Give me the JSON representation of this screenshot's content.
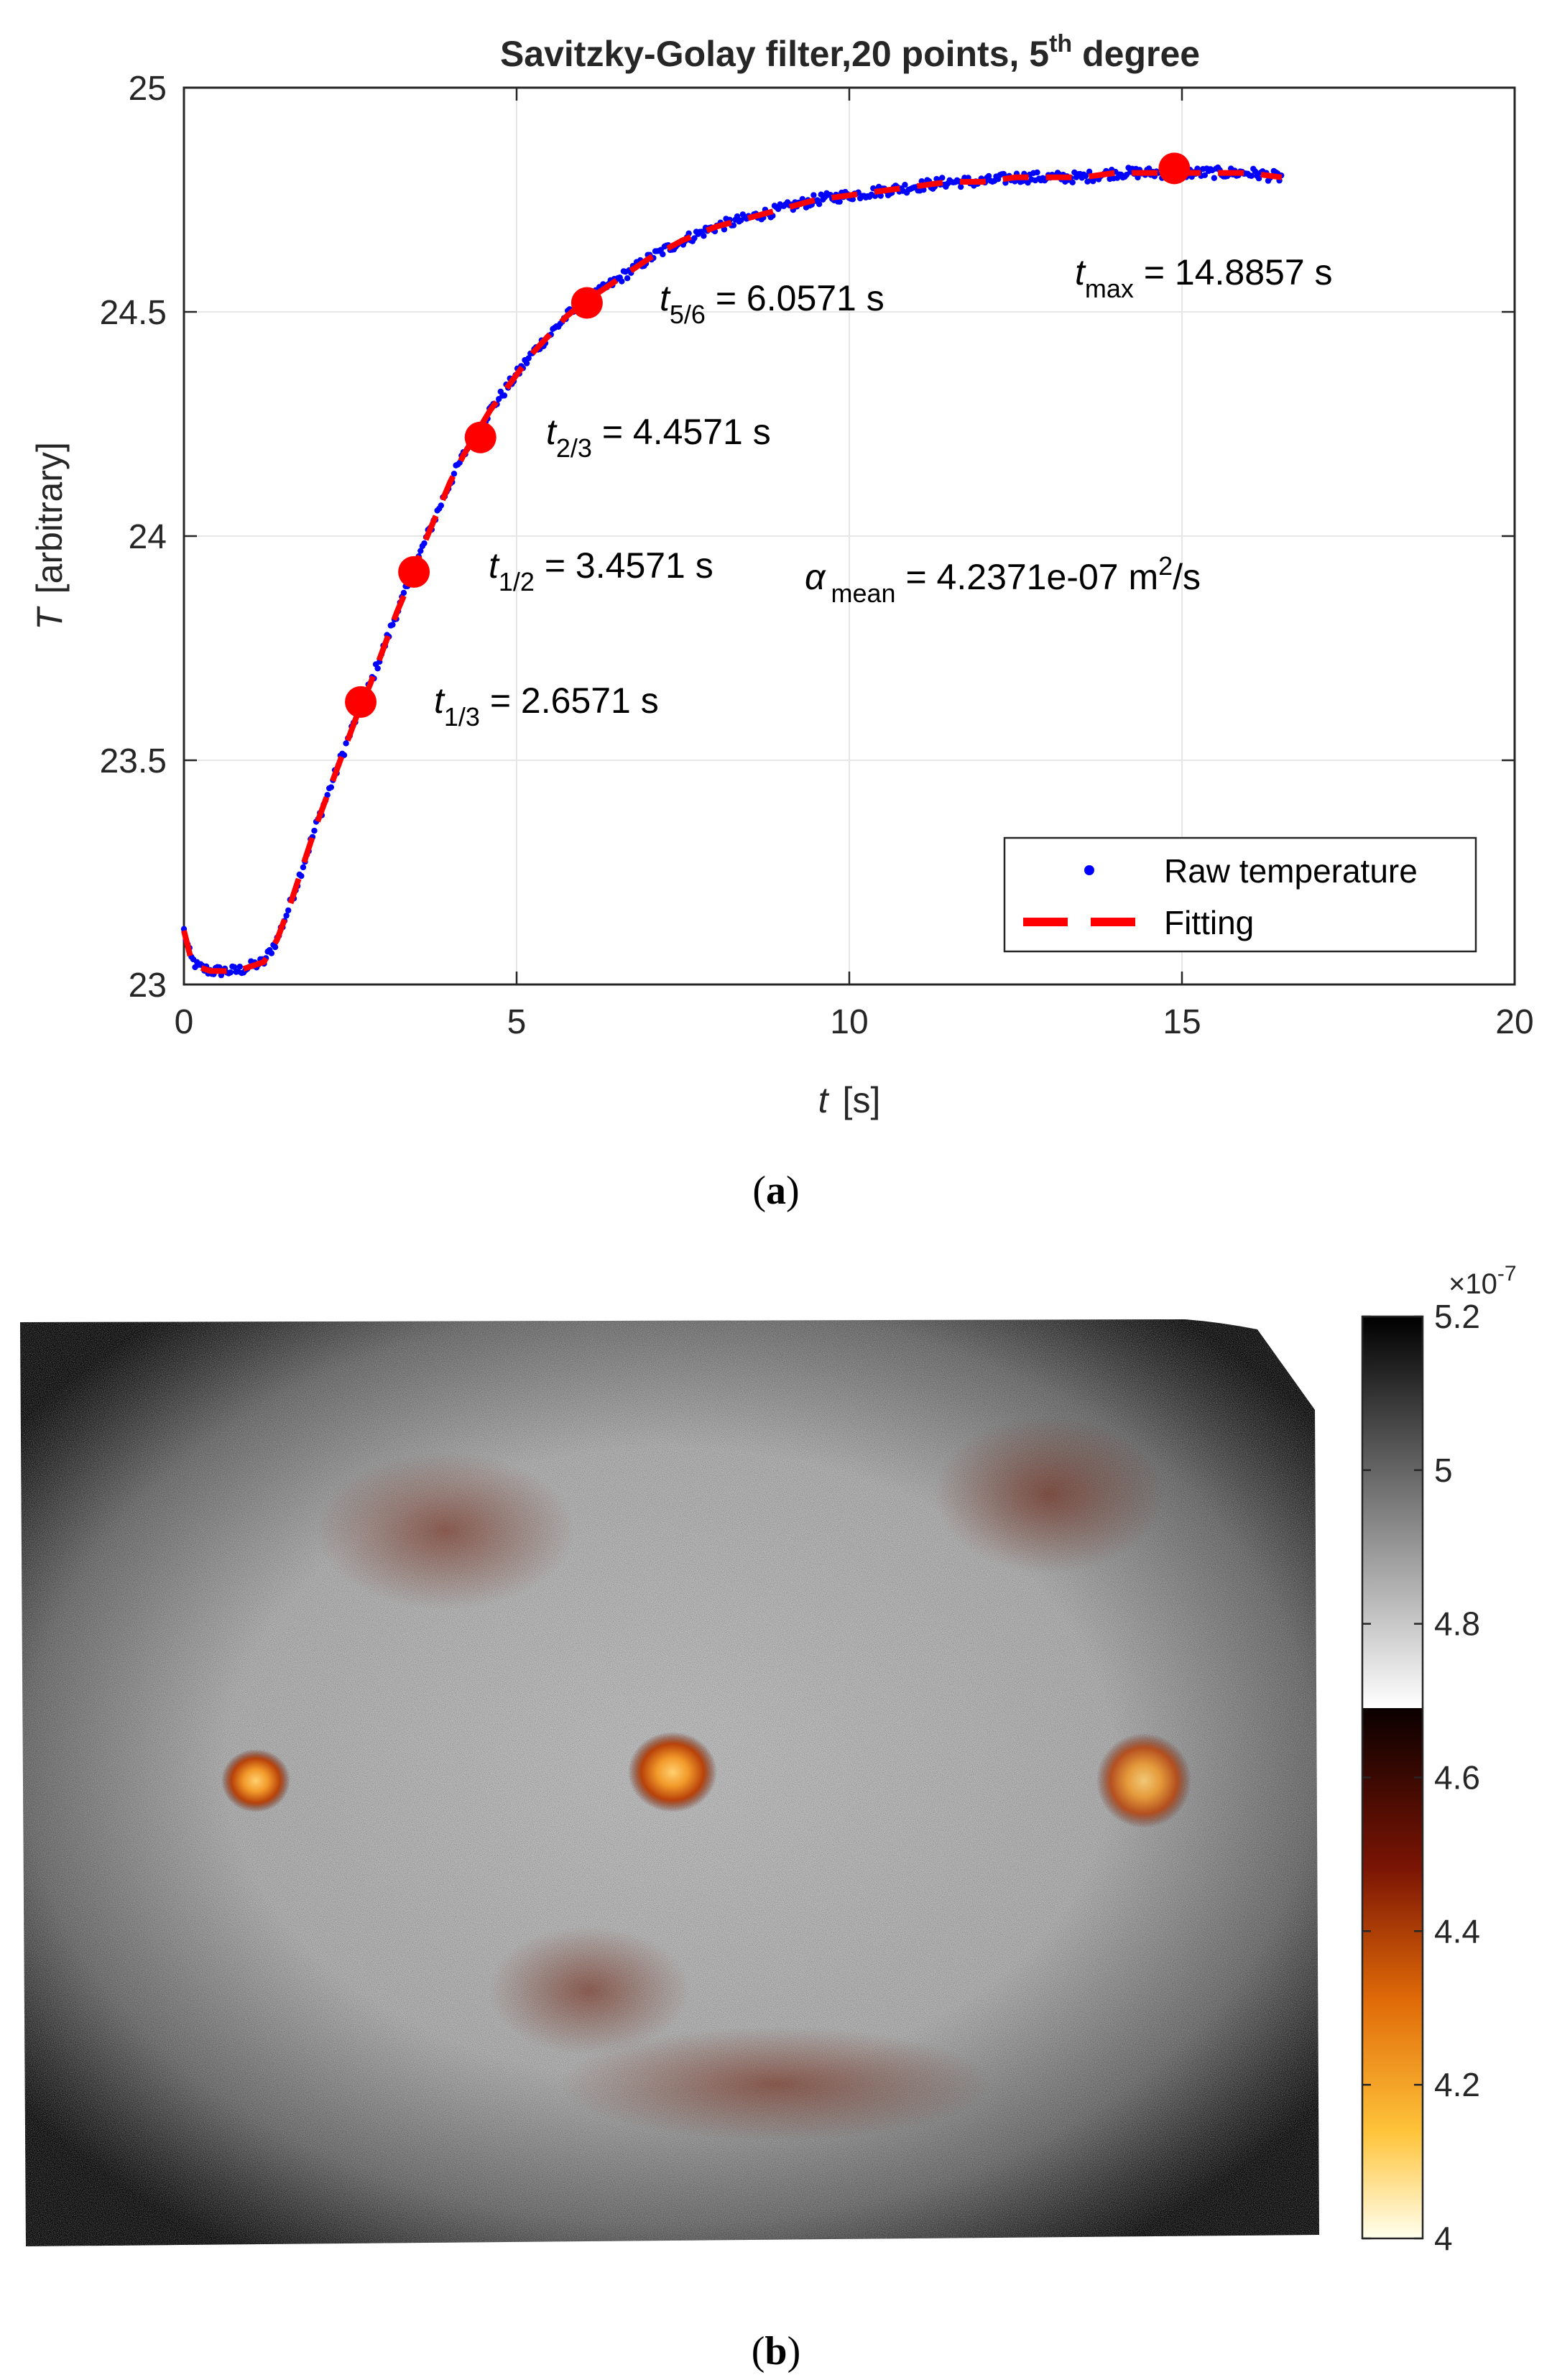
{
  "chart_data": [
    {
      "type": "line",
      "panel_label": "a",
      "title": "Savitzky-Golay filter,20 points, 5",
      "title_sup": "th",
      "title_tail": " degree",
      "xlabel_var": "t",
      "xlabel_unit": "[s]",
      "ylabel_var": "T",
      "ylabel_unit": "[arbitrary]",
      "xlim": [
        0,
        20
      ],
      "ylim": [
        23,
        25
      ],
      "xticks": [
        "0",
        "5",
        "10",
        "15",
        "20"
      ],
      "yticks": [
        "23",
        "23.5",
        "24",
        "24.5",
        "25"
      ],
      "grid": true,
      "legend_position": "bottom-right",
      "series": [
        {
          "name": "Raw temperature",
          "style": "dots",
          "color": "#0000ff",
          "x": [
            0,
            0.1,
            0.2,
            0.4,
            0.6,
            0.8,
            1.0,
            1.2,
            1.4,
            1.6,
            1.8,
            2.0,
            2.2,
            2.4,
            2.6,
            2.8,
            3.0,
            3.2,
            3.4,
            3.6,
            3.8,
            4.0,
            4.2,
            4.4,
            4.6,
            4.8,
            5.0,
            5.25,
            5.5,
            5.75,
            6.0,
            6.5,
            7.0,
            7.5,
            8.0,
            8.5,
            9.0,
            9.5,
            10.0,
            10.5,
            11.0,
            11.5,
            12.0,
            12.5,
            13.0,
            13.5,
            14.0,
            14.5,
            15.0,
            15.5,
            16.0,
            16.5
          ],
          "y": [
            23.12,
            23.06,
            23.04,
            23.03,
            23.03,
            23.03,
            23.04,
            23.05,
            23.1,
            23.18,
            23.27,
            23.36,
            23.44,
            23.52,
            23.6,
            23.67,
            23.75,
            23.83,
            23.9,
            23.98,
            24.05,
            24.12,
            24.18,
            24.23,
            24.28,
            24.32,
            24.36,
            24.41,
            24.45,
            24.49,
            24.52,
            24.57,
            24.62,
            24.66,
            24.69,
            24.71,
            24.73,
            24.75,
            24.76,
            24.77,
            24.78,
            24.79,
            24.79,
            24.8,
            24.8,
            24.8,
            24.81,
            24.81,
            24.81,
            24.81,
            24.81,
            24.8
          ]
        },
        {
          "name": "Fitting",
          "style": "dashed",
          "color": "#ff0000",
          "x": [
            0,
            0.1,
            0.2,
            0.4,
            0.6,
            0.8,
            1.0,
            1.2,
            1.4,
            1.6,
            1.8,
            2.0,
            2.2,
            2.4,
            2.6,
            2.8,
            3.0,
            3.2,
            3.4,
            3.6,
            3.8,
            4.0,
            4.2,
            4.4,
            4.6,
            4.8,
            5.0,
            5.25,
            5.5,
            5.75,
            6.0,
            6.5,
            7.0,
            7.5,
            8.0,
            8.5,
            9.0,
            9.5,
            10.0,
            10.5,
            11.0,
            11.5,
            12.0,
            12.5,
            13.0,
            13.5,
            14.0,
            14.5,
            15.0,
            15.5,
            16.0,
            16.5
          ],
          "y": [
            23.12,
            23.06,
            23.04,
            23.03,
            23.03,
            23.03,
            23.04,
            23.05,
            23.1,
            23.18,
            23.27,
            23.36,
            23.44,
            23.52,
            23.6,
            23.67,
            23.75,
            23.83,
            23.9,
            23.98,
            24.05,
            24.12,
            24.18,
            24.23,
            24.28,
            24.32,
            24.36,
            24.41,
            24.45,
            24.49,
            24.52,
            24.57,
            24.62,
            24.66,
            24.69,
            24.71,
            24.73,
            24.75,
            24.76,
            24.77,
            24.78,
            24.79,
            24.79,
            24.8,
            24.8,
            24.8,
            24.81,
            24.81,
            24.81,
            24.81,
            24.81,
            24.8
          ]
        }
      ],
      "markers": [
        {
          "x": 2.6571,
          "y": 23.63,
          "label_main": "t",
          "label_sub": "1/3",
          "label_value": " = 2.6571 s"
        },
        {
          "x": 3.4571,
          "y": 23.92,
          "label_main": "t",
          "label_sub": "1/2",
          "label_value": " = 3.4571 s"
        },
        {
          "x": 4.4571,
          "y": 24.22,
          "label_main": "t",
          "label_sub": "2/3",
          "label_value": " = 4.4571 s"
        },
        {
          "x": 6.0571,
          "y": 24.52,
          "label_main": "t",
          "label_sub": "5/6",
          "label_value": " = 6.0571 s"
        },
        {
          "x": 14.8857,
          "y": 24.82,
          "label_main": "t",
          "label_sub": "max",
          "label_value": " = 14.8857 s"
        }
      ],
      "annotation_alpha": {
        "symbol": "α",
        "sub": "mean",
        "value": " = 4.2371e-07 m",
        "sup": "2",
        "unit": "/s"
      },
      "marker_color": "#ff0000"
    },
    {
      "type": "heatmap",
      "panel_label": "b",
      "colorbar_exponent_base": "×10",
      "colorbar_exponent": "-7",
      "colorbar_range": [
        4,
        5.2
      ],
      "colorbar_ticks": [
        "5.2",
        "5",
        "4.8",
        "4.6",
        "4.4",
        "4.2",
        "4"
      ],
      "colormap": "hot (4–4.7) / gray (4.7–5.2)",
      "hotspots": [
        "left",
        "center",
        "right"
      ]
    }
  ]
}
